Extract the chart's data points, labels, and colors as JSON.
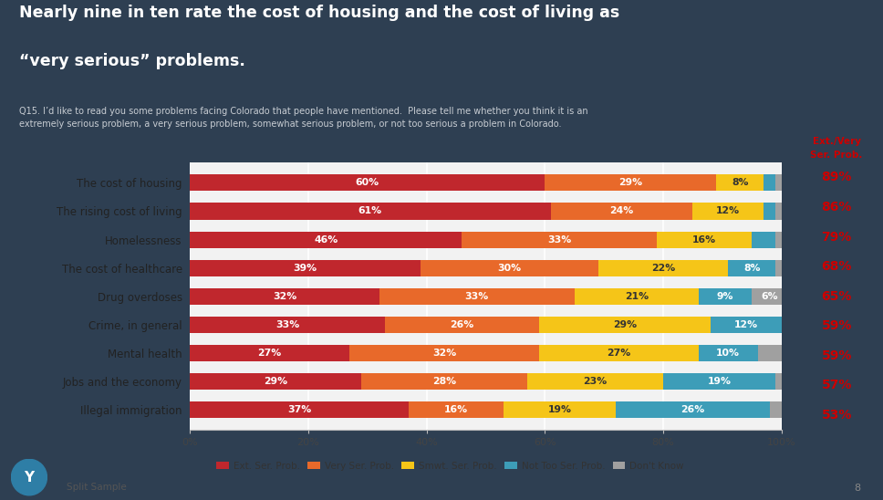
{
  "title_line1": "Nearly nine in ten rate the cost of housing and the cost of living as",
  "title_line2": "“very serious” problems.",
  "subtitle": "Q15. I’d like to read you some problems facing Colorado that people have mentioned.  Please tell me whether you think it is an\nextremely serious problem, a very serious problem, somewhat serious problem, or not too serious a problem in Colorado.",
  "header_bg_color": "#2e3f52",
  "chart_bg_color": "#f2f2f2",
  "categories": [
    "The cost of housing",
    "The rising cost of living",
    "Homelessness",
    "The cost of healthcare",
    "Drug overdoses",
    "Crime, in general",
    "Mental health",
    "Jobs and the economy",
    "Illegal immigration"
  ],
  "data": {
    "ext_serious": [
      60,
      61,
      46,
      39,
      32,
      33,
      27,
      29,
      37
    ],
    "very_serious": [
      29,
      24,
      33,
      30,
      33,
      26,
      32,
      28,
      16
    ],
    "smwt_serious": [
      8,
      12,
      16,
      22,
      21,
      29,
      27,
      23,
      19
    ],
    "not_too": [
      2,
      2,
      4,
      8,
      9,
      12,
      10,
      19,
      26
    ],
    "dont_know": [
      1,
      1,
      1,
      1,
      6,
      0,
      4,
      1,
      2
    ]
  },
  "ext_very_totals": [
    "89%",
    "86%",
    "79%",
    "68%",
    "65%",
    "59%",
    "59%",
    "57%",
    "53%"
  ],
  "colors": {
    "ext_serious": "#c0272d",
    "very_serious": "#e8692a",
    "smwt_serious": "#f5c518",
    "not_too": "#3d9db8",
    "dont_know": "#a0a0a0"
  },
  "legend_labels": [
    "Ext. Ser. Prob.",
    "Very Ser. Prob.",
    "Smwt. Ser. Prob.",
    "Not Too Ser. Prob.",
    "Don't Know"
  ],
  "footer_text": "Split Sample",
  "page_number": "8"
}
